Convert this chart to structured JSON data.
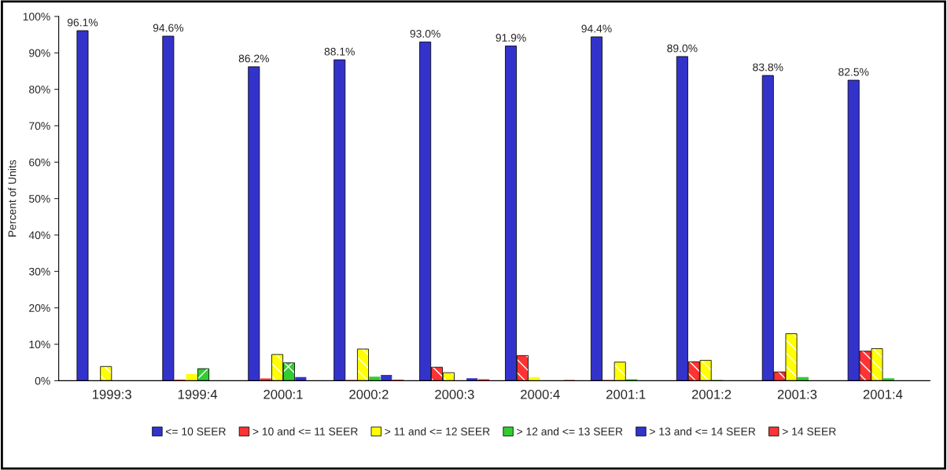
{
  "chart_data": {
    "type": "bar",
    "ylabel": "Percent of Units",
    "categories": [
      "1999:3",
      "1999:4",
      "2000:1",
      "2000:2",
      "2000:3",
      "2000:4",
      "2001:1",
      "2001:2",
      "2001:3",
      "2001:4"
    ],
    "series": [
      {
        "name": "<= 10 SEER",
        "color": "#3333cc",
        "values": [
          96.1,
          94.6,
          86.2,
          88.1,
          93.0,
          91.9,
          94.4,
          89.0,
          83.8,
          82.5
        ],
        "value_labels": [
          "96.1%",
          "94.6%",
          "86.2%",
          "88.1%",
          "93.0%",
          "91.9%",
          "94.4%",
          "89.0%",
          "83.8%",
          "82.5%"
        ]
      },
      {
        "name": "> 10 and <= 11 SEER",
        "color": "#ff3333",
        "values": [
          0.0,
          0.3,
          0.6,
          0.2,
          3.7,
          6.9,
          0.2,
          5.2,
          2.4,
          8.1
        ]
      },
      {
        "name": "> 11 and <= 12 SEER",
        "color": "#ffff00",
        "values": [
          3.9,
          1.8,
          7.2,
          8.7,
          2.2,
          1.0,
          5.1,
          5.6,
          12.9,
          8.8
        ]
      },
      {
        "name": "> 12 and <= 13 SEER",
        "color": "#33cc33",
        "values": [
          0.0,
          3.3,
          4.9,
          1.1,
          0.0,
          0.0,
          0.4,
          0.2,
          1.0,
          0.7
        ]
      },
      {
        "name": "> 13 and <= 14 SEER",
        "color": "#3333cc",
        "values": [
          0.0,
          0.0,
          1.0,
          1.6,
          0.7,
          0.0,
          0.0,
          0.0,
          0.0,
          0.0
        ]
      },
      {
        "name": "> 14 SEER",
        "color": "#ff3333",
        "values": [
          0.0,
          0.0,
          0.0,
          0.3,
          0.4,
          0.2,
          0.0,
          0.0,
          0.0,
          0.0
        ]
      }
    ],
    "ylim": [
      0,
      100
    ],
    "yticks": [
      {
        "value": 0,
        "label": "0%"
      },
      {
        "value": 10,
        "label": "10%"
      },
      {
        "value": 20,
        "label": "20%"
      },
      {
        "value": 30,
        "label": "30%"
      },
      {
        "value": 40,
        "label": "40%"
      },
      {
        "value": 50,
        "label": "50%"
      },
      {
        "value": 60,
        "label": "60%"
      },
      {
        "value": 70,
        "label": "70%"
      },
      {
        "value": 80,
        "label": "80%"
      },
      {
        "value": 90,
        "label": "90%"
      },
      {
        "value": 100,
        "label": "100%"
      }
    ],
    "grid": false,
    "legend": "bottom"
  }
}
